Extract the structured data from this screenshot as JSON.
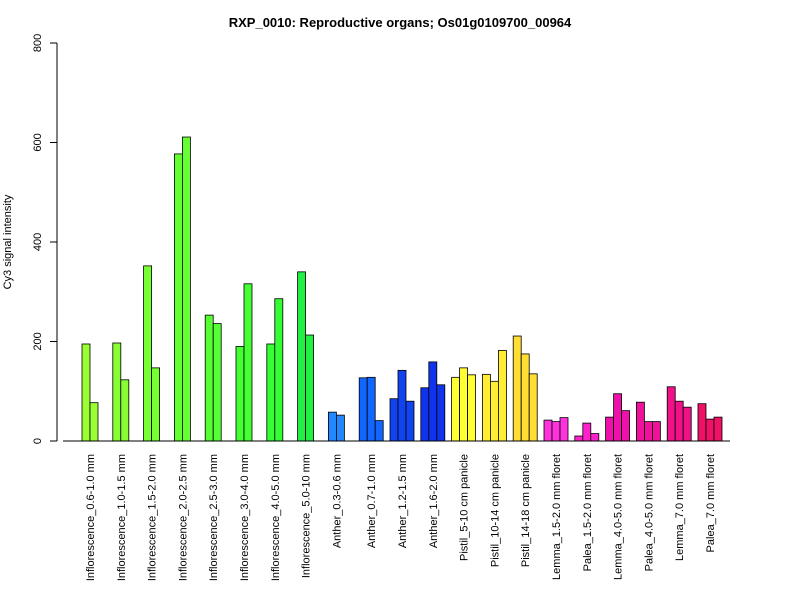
{
  "chart_data": {
    "type": "bar",
    "title": "RXP_0010: Reproductive organs; Os01g0109700_00964",
    "xlabel": "",
    "ylabel": "Cy3 signal intensity",
    "ylim": [
      0,
      800
    ],
    "yticks": [
      0,
      200,
      400,
      600,
      800
    ],
    "grid": false,
    "groups": [
      {
        "label": "Inflorescence_0.6-1.0 mm",
        "color": "#99ff33",
        "values": [
          195,
          77
        ]
      },
      {
        "label": "Inflorescence_1.0-1.5 mm",
        "color": "#88ff33",
        "values": [
          197,
          123
        ]
      },
      {
        "label": "Inflorescence_1.5-2.0 mm",
        "color": "#77ff33",
        "values": [
          352,
          147
        ]
      },
      {
        "label": "Inflorescence_2.0-2.5 mm",
        "color": "#66ff33",
        "values": [
          577,
          611
        ]
      },
      {
        "label": "Inflorescence_2.5-3.0 mm",
        "color": "#55ff33",
        "values": [
          253,
          236
        ]
      },
      {
        "label": "Inflorescence_3.0-4.0 mm",
        "color": "#44ff33",
        "values": [
          190,
          316
        ]
      },
      {
        "label": "Inflorescence_4.0-5.0 mm",
        "color": "#33ff33",
        "values": [
          195,
          286
        ]
      },
      {
        "label": "Inflorescence_5.0-10 mm",
        "color": "#22ee44",
        "values": [
          340,
          213
        ]
      },
      {
        "label": "Anther_0.3-0.6 mm",
        "color": "#2288ff",
        "values": [
          58,
          52
        ]
      },
      {
        "label": "Anther_0.7-1.0 mm",
        "color": "#1166ff",
        "values": [
          127,
          128,
          41
        ]
      },
      {
        "label": "Anther_1.2-1.5 mm",
        "color": "#1144ee",
        "values": [
          85,
          142,
          80
        ]
      },
      {
        "label": "Anther_1.6-2.0 mm",
        "color": "#1133ee",
        "values": [
          107,
          159,
          113
        ]
      },
      {
        "label": "Pistil_5-10 cm panicle",
        "color": "#ffff33",
        "values": [
          128,
          147,
          133
        ]
      },
      {
        "label": "Pistil_10-14 cm panicle",
        "color": "#ffee33",
        "values": [
          134,
          120,
          182
        ]
      },
      {
        "label": "Pistil_14-18 cm panicle",
        "color": "#ffdd33",
        "values": [
          211,
          175,
          135
        ]
      },
      {
        "label": "Lemma_1.5-2.0 mm floret",
        "color": "#ff33dd",
        "values": [
          42,
          39,
          47
        ]
      },
      {
        "label": "Palea_1.5-2.0 mm floret",
        "color": "#ff22cc",
        "values": [
          10,
          36,
          15
        ]
      },
      {
        "label": "Lemma_4.0-5.0 mm floret",
        "color": "#ee11aa",
        "values": [
          48,
          95,
          61
        ]
      },
      {
        "label": "Palea_4.0-5.0 mm floret",
        "color": "#ee1199",
        "values": [
          78,
          39,
          39
        ]
      },
      {
        "label": "Lemma_7.0 mm floret",
        "color": "#ee1188",
        "values": [
          109,
          80,
          68
        ]
      },
      {
        "label": "Palea_7.0 mm floret",
        "color": "#ee1166",
        "values": [
          75,
          44,
          48
        ]
      }
    ]
  }
}
